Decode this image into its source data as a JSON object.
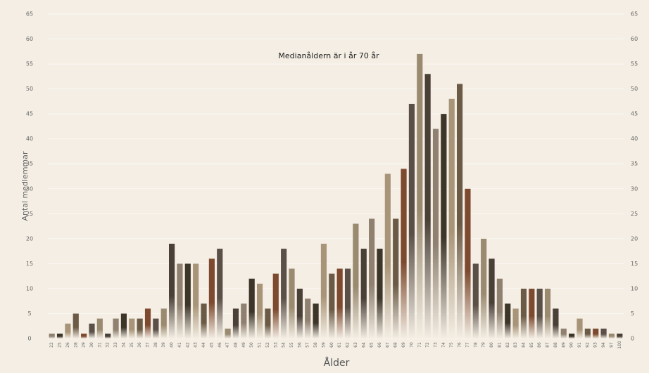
{
  "chart_data": {
    "type": "bar",
    "annotation": "Medianåldern är i år 70 år",
    "x_label": "Ålder",
    "y_label": "Antal medlemmar",
    "categories": [
      "22",
      "25",
      "26",
      "28",
      "29",
      "30",
      "31",
      "32",
      "33",
      "34",
      "35",
      "36",
      "37",
      "38",
      "39",
      "40",
      "41",
      "42",
      "43",
      "44",
      "45",
      "46",
      "47",
      "48",
      "49",
      "50",
      "51",
      "52",
      "53",
      "54",
      "55",
      "56",
      "57",
      "58",
      "59",
      "60",
      "61",
      "62",
      "63",
      "64",
      "65",
      "66",
      "67",
      "68",
      "69",
      "70",
      "71",
      "72",
      "73",
      "74",
      "75",
      "76",
      "77",
      "78",
      "79",
      "80",
      "81",
      "82",
      "83",
      "84",
      "85",
      "86",
      "87",
      "88",
      "89",
      "90",
      "91",
      "92",
      "93",
      "94",
      "97",
      "100"
    ],
    "values": [
      1,
      1,
      3,
      5,
      1,
      3,
      4,
      1,
      4,
      5,
      4,
      4,
      6,
      4,
      6,
      19,
      15,
      15,
      15,
      7,
      16,
      18,
      2,
      6,
      7,
      12,
      11,
      6,
      13,
      18,
      14,
      10,
      8,
      7,
      19,
      13,
      14,
      14,
      23,
      18,
      24,
      18,
      33,
      24,
      34,
      47,
      57,
      53,
      42,
      45,
      48,
      51,
      30,
      15,
      20,
      16,
      12,
      7,
      6,
      10,
      10,
      10,
      10,
      6,
      2,
      1,
      4,
      2,
      2,
      2,
      1,
      1
    ],
    "palette": [
      "#8f8070",
      "#3d3528",
      "#a89478",
      "#6b5a45",
      "#7d4a30",
      "#5a5048",
      "#9a8a70",
      "#4a4038"
    ],
    "ylim": [
      0,
      65
    ],
    "yticks": [
      0,
      5,
      10,
      15,
      20,
      25,
      30,
      35,
      40,
      45,
      50,
      55,
      60,
      65
    ],
    "y2lim": [
      0,
      65
    ],
    "y2ticks": [
      0,
      5,
      10,
      15,
      20,
      25,
      30,
      35,
      40,
      45,
      50,
      55,
      60,
      65
    ],
    "grid": true
  }
}
